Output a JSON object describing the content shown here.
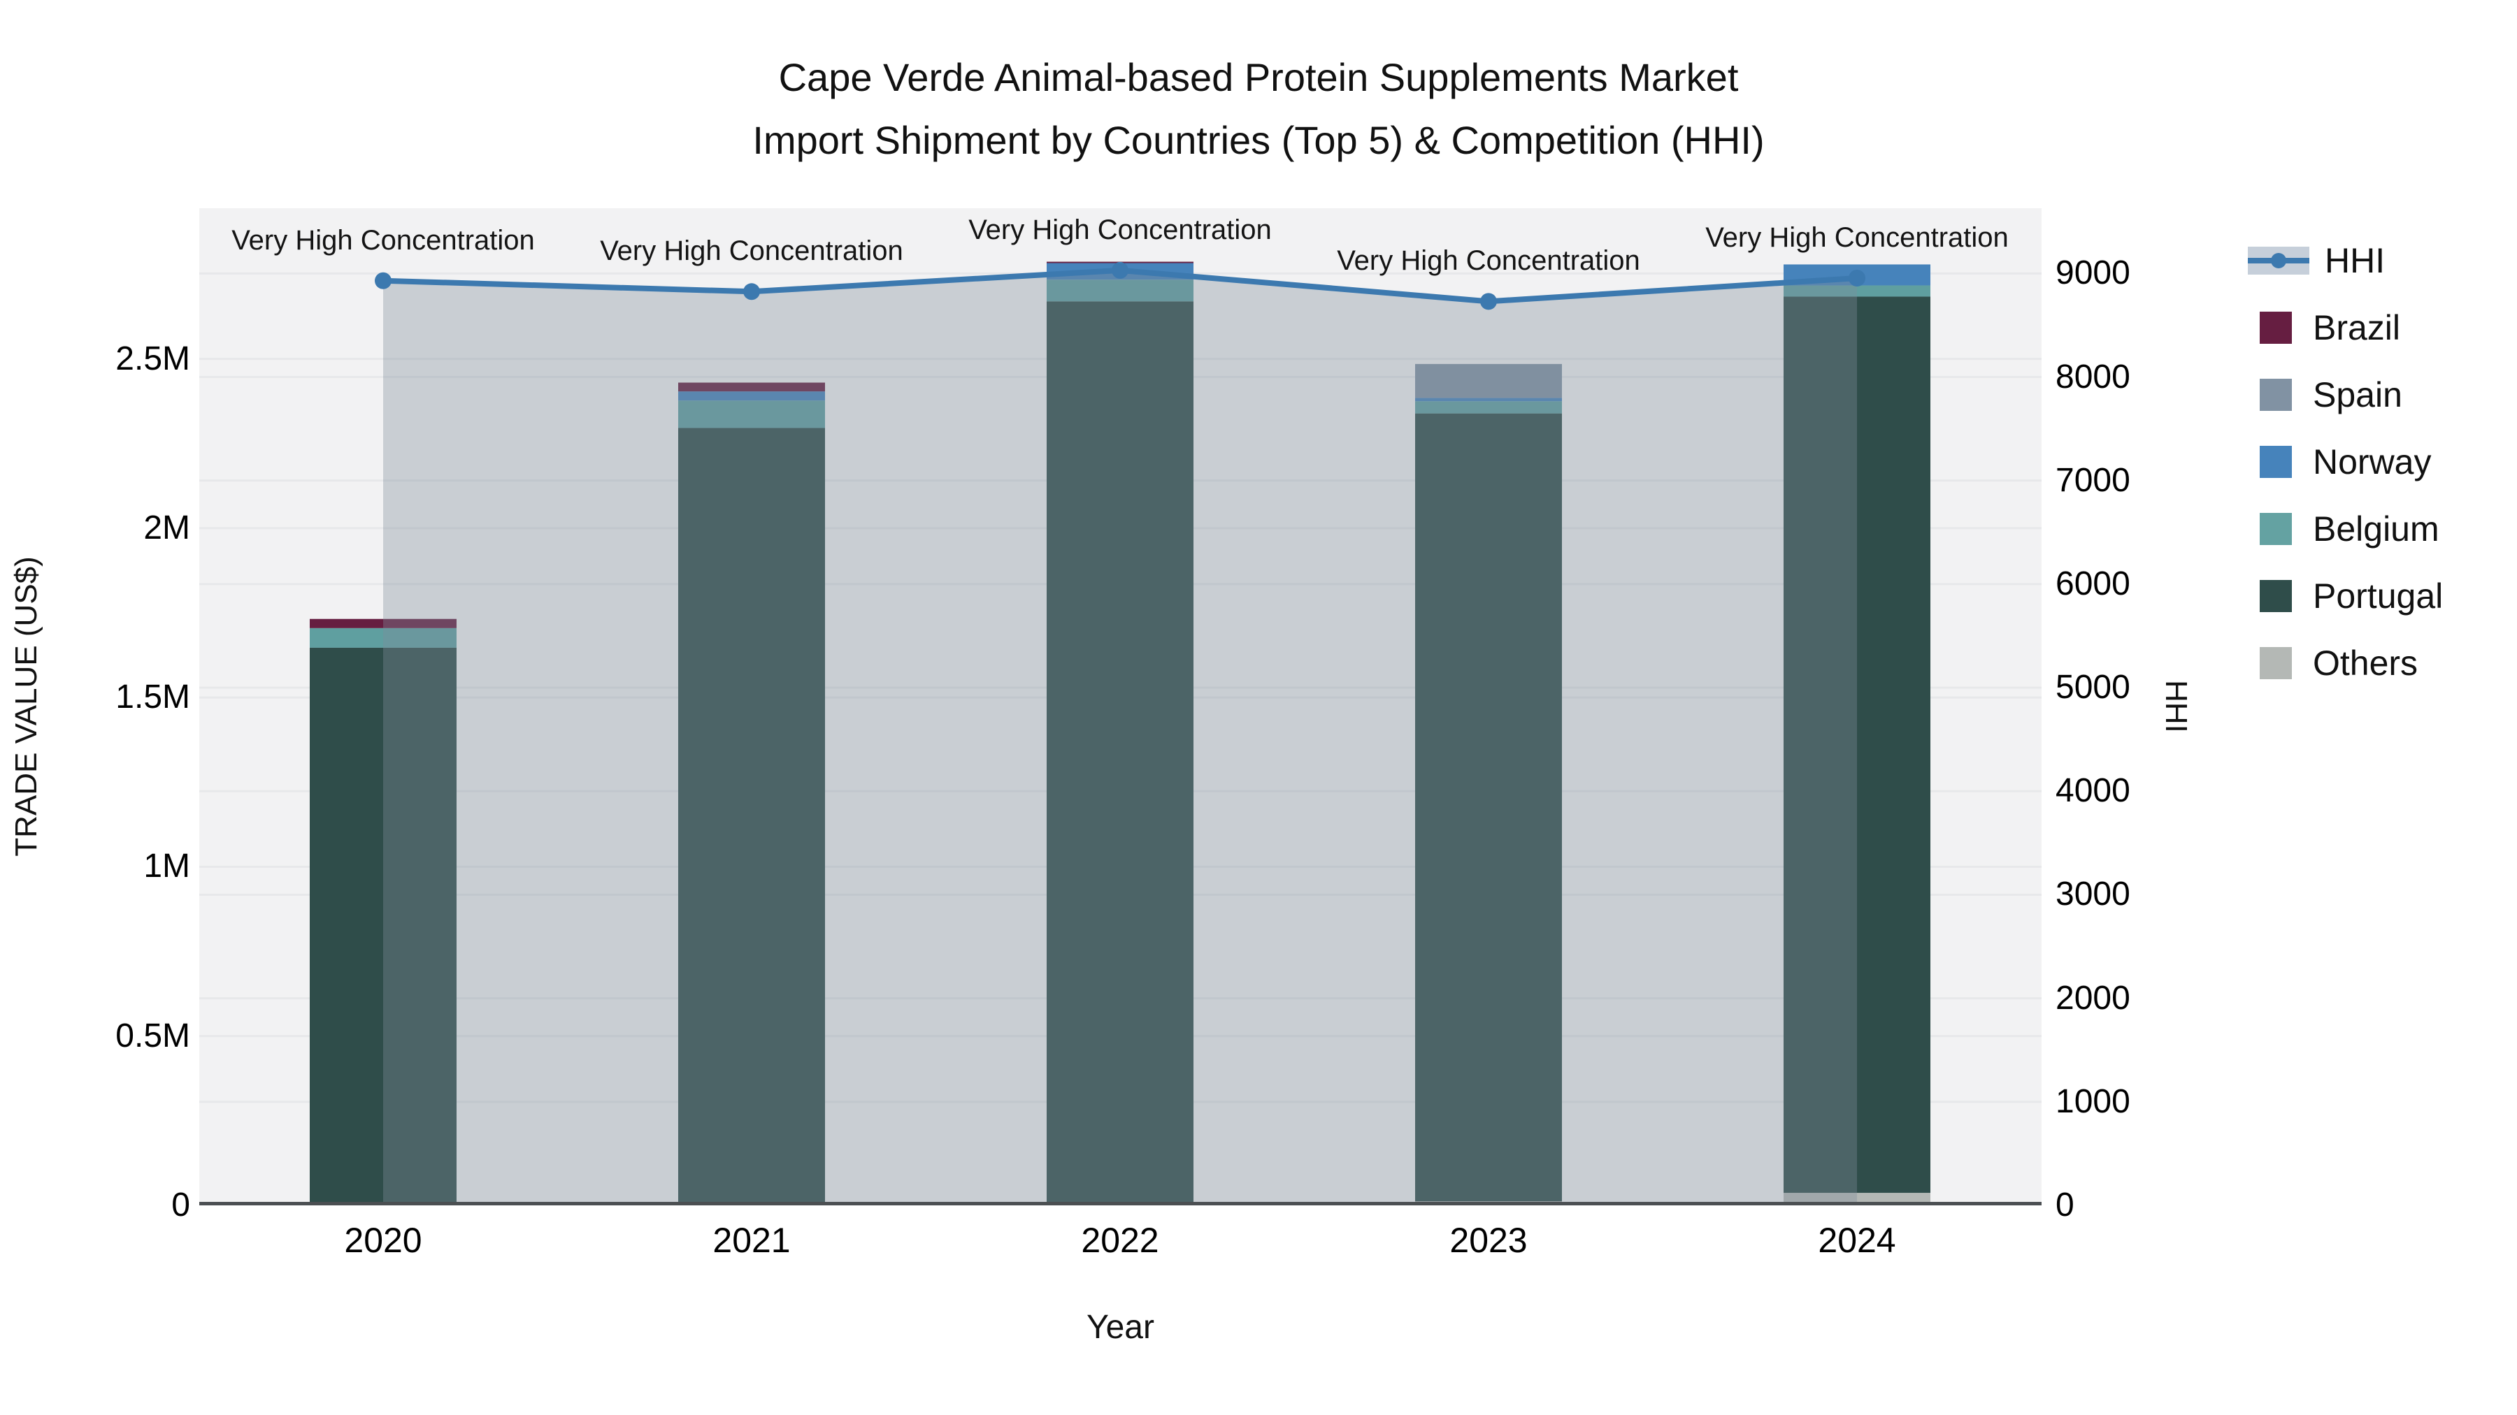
{
  "title": {
    "line1": "Cape Verde Animal-based Protein Supplements Market",
    "line2": "Import Shipment by Countries (Top 5) & Competition (HHI)"
  },
  "axes": {
    "x": {
      "title": "Year"
    },
    "y_left": {
      "title": "TRADE VALUE (US$)",
      "ticks": [
        0,
        500000,
        1000000,
        1500000,
        2000000,
        2500000
      ],
      "tick_labels": [
        "0",
        "0.5M",
        "1M",
        "1.5M",
        "2M",
        "2.5M"
      ],
      "max": 2945000
    },
    "y_right": {
      "title": "HHI",
      "ticks": [
        0,
        1000,
        2000,
        3000,
        4000,
        5000,
        6000,
        7000,
        8000,
        9000
      ],
      "tick_labels": [
        "0",
        "1000",
        "2000",
        "3000",
        "4000",
        "5000",
        "6000",
        "7000",
        "8000",
        "9000"
      ],
      "max": 9630
    }
  },
  "legend": [
    {
      "label": "HHI",
      "type": "line",
      "color": "#3c79af"
    },
    {
      "label": "Brazil",
      "type": "square",
      "color": "#661e41"
    },
    {
      "label": "Spain",
      "type": "square",
      "color": "#8192a3"
    },
    {
      "label": "Norway",
      "type": "square",
      "color": "#4683bb"
    },
    {
      "label": "Belgium",
      "type": "square",
      "color": "#64a2a2"
    },
    {
      "label": "Portugal",
      "type": "square",
      "color": "#2f4d4a"
    },
    {
      "label": "Others",
      "type": "square",
      "color": "#b4b8b5"
    }
  ],
  "colors": {
    "plot_background": "#f2f2f3",
    "gridline": "#e7e8ea",
    "axis_line": "#4b4f52",
    "hhi_line": "#3c79af",
    "hhi_fill": "rgba(128,140,156,0.36)"
  },
  "chart_data": {
    "type": "bar",
    "subtype": "stacked-bars-with-line",
    "title": "Cape Verde Animal-based Protein Supplements Market — Import Shipment by Countries (Top 5) & Competition (HHI)",
    "categories": [
      "2020",
      "2021",
      "2022",
      "2023",
      "2024"
    ],
    "xlabel": "Year",
    "ylabel_left": "TRADE VALUE (US$)",
    "ylabel_right": "HHI",
    "ylim_left": [
      0,
      2945000
    ],
    "ylim_right": [
      0,
      9630
    ],
    "grid": true,
    "legend_position": "right",
    "stack_order_bottom_to_top": [
      "Others",
      "Portugal",
      "Belgium",
      "Norway",
      "Spain",
      "Brazil"
    ],
    "series": [
      {
        "name": "Brazil",
        "color": "#661e41",
        "values": [
          27000,
          26000,
          4000,
          0,
          0
        ]
      },
      {
        "name": "Spain",
        "color": "#8192a3",
        "values": [
          0,
          0,
          0,
          100000,
          0
        ]
      },
      {
        "name": "Norway",
        "color": "#4683bb",
        "values": [
          0,
          27000,
          49000,
          10000,
          62000
        ]
      },
      {
        "name": "Belgium",
        "color": "#5f9fa0",
        "values": [
          58000,
          81000,
          64000,
          36000,
          33000
        ]
      },
      {
        "name": "Portugal",
        "color": "#2f4d4a",
        "values": [
          1647000,
          2292000,
          2664000,
          2327000,
          2647000
        ]
      },
      {
        "name": "Others",
        "color": "#b4b8b5",
        "values": [
          0,
          4000,
          6000,
          12000,
          37000
        ]
      }
    ],
    "bar_totals": [
      1732000,
      2430000,
      2787000,
      2485000,
      2779000
    ],
    "line_series": {
      "name": "HHI",
      "axis": "right",
      "color": "#3c79af",
      "fill_to_zero": true,
      "fill_color": "rgba(128,140,156,0.36)",
      "values": [
        8930,
        8825,
        9030,
        8730,
        8955
      ]
    },
    "annotations": [
      {
        "category": "2020",
        "text": "Very High Concentration"
      },
      {
        "category": "2021",
        "text": "Very High Concentration"
      },
      {
        "category": "2022",
        "text": "Very High Concentration"
      },
      {
        "category": "2023",
        "text": "Very High Concentration"
      },
      {
        "category": "2024",
        "text": "Very High Concentration"
      }
    ]
  }
}
